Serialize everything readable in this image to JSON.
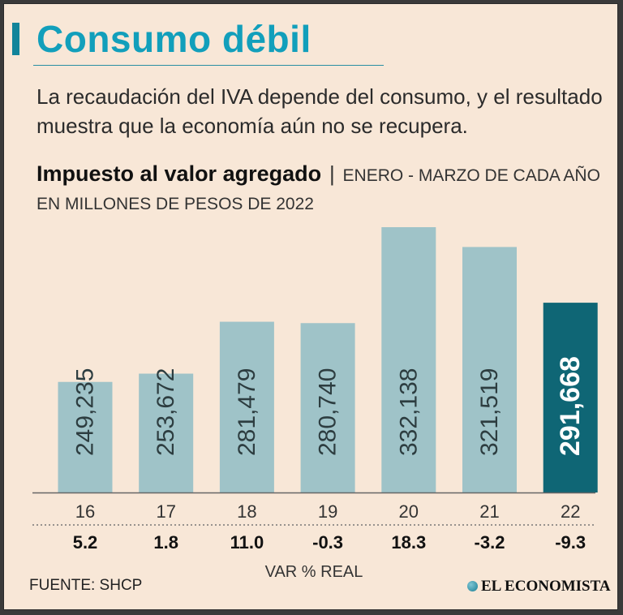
{
  "title": "Consumo débil",
  "subtitle": "La recaudación del IVA depende del consumo, y el resultado muestra que la economía aún no se recupera.",
  "chart_heading": {
    "bold": "Impuesto al valor agregado",
    "separator": "|",
    "detail": "ENERO - MARZO DE CADA AÑO EN MILLONES DE PESOS DE 2022"
  },
  "source": "FUENTE: SHCP",
  "brand": "EL ECONOMISTA",
  "colors": {
    "bar": "#9fc3c8",
    "highlight_bar": "#0f6675",
    "title": "#129fbb"
  },
  "chart_data": {
    "type": "bar",
    "title": "Impuesto al valor agregado",
    "categories": [
      "16",
      "17",
      "18",
      "19",
      "20",
      "21",
      "22"
    ],
    "values": [
      249235,
      253672,
      281479,
      280740,
      332138,
      321519,
      291668
    ],
    "value_labels": [
      "249,235",
      "253,672",
      "281,479",
      "280,740",
      "332,138",
      "321,519",
      "291,668"
    ],
    "var_real": [
      "5.2",
      "1.8",
      "11.0",
      "-0.3",
      "18.3",
      "-3.2",
      "-9.3"
    ],
    "var_label": "VAR % REAL",
    "highlight_index": 6,
    "ylim": [
      190000,
      335000
    ],
    "xlabel": "",
    "ylabel": ""
  }
}
